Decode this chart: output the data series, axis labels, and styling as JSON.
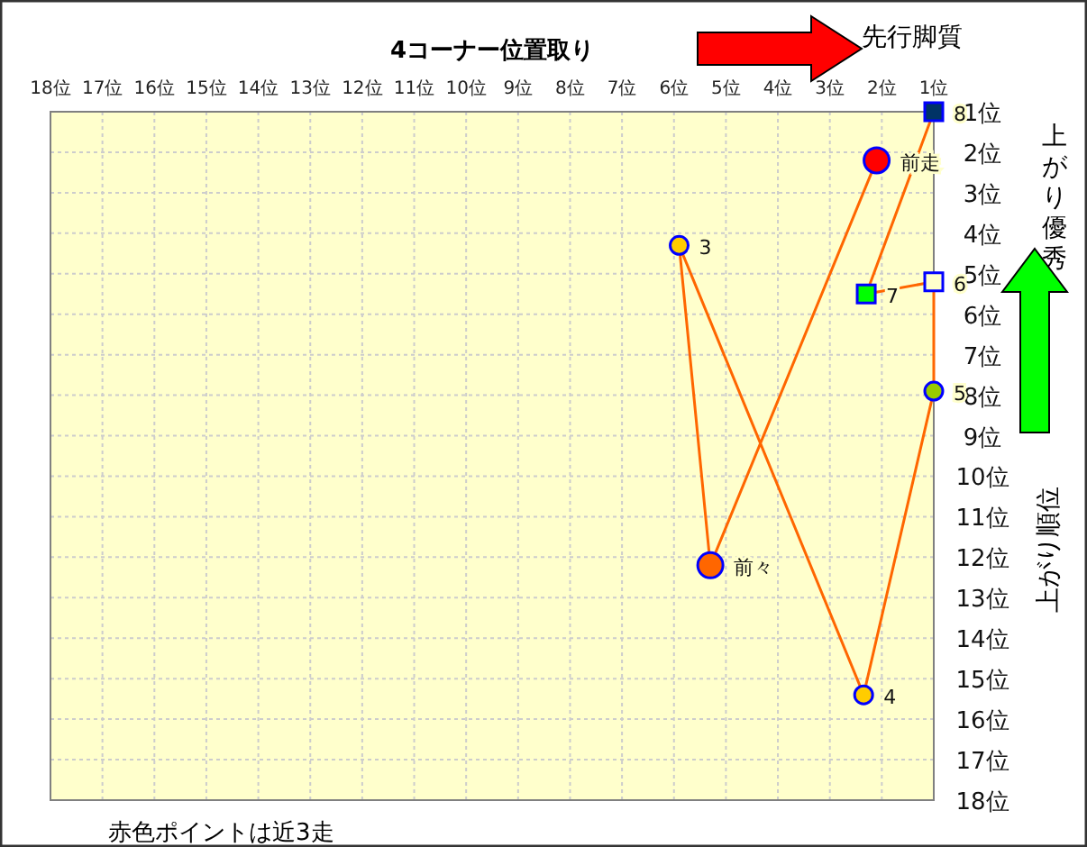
{
  "chart_data": {
    "type": "scatter",
    "title": "4コーナー位置取り",
    "y2label": "上がり順位",
    "annotations": [
      "先行脚質",
      "上がり優秀",
      "赤色ポイントは近3走"
    ],
    "xlim": [
      18,
      1
    ],
    "xticks": [
      {
        "value": 18,
        "label": "18位"
      },
      {
        "value": 17,
        "label": "17位"
      },
      {
        "value": 16,
        "label": "16位"
      },
      {
        "value": 15,
        "label": "15位"
      },
      {
        "value": 14,
        "label": "14位"
      },
      {
        "value": 13,
        "label": "13位"
      },
      {
        "value": 12,
        "label": "12位"
      },
      {
        "value": 11,
        "label": "11位"
      },
      {
        "value": 10,
        "label": "10位"
      },
      {
        "value": 9,
        "label": "9位"
      },
      {
        "value": 8,
        "label": "8位"
      },
      {
        "value": 7,
        "label": "7位"
      },
      {
        "value": 6,
        "label": "6位"
      },
      {
        "value": 5,
        "label": "5位"
      },
      {
        "value": 4,
        "label": "4位"
      },
      {
        "value": 3,
        "label": "3位"
      },
      {
        "value": 2,
        "label": "2位"
      },
      {
        "value": 1,
        "label": "1位"
      }
    ],
    "ylim": [
      18,
      1
    ],
    "yticks": [
      {
        "value": 1,
        "label": "1位"
      },
      {
        "value": 2,
        "label": "2位"
      },
      {
        "value": 3,
        "label": "3位"
      },
      {
        "value": 4,
        "label": "4位"
      },
      {
        "value": 5,
        "label": "5位"
      },
      {
        "value": 6,
        "label": "6位"
      },
      {
        "value": 7,
        "label": "7位"
      },
      {
        "value": 8,
        "label": "8位"
      },
      {
        "value": 9,
        "label": "9位"
      },
      {
        "value": 10,
        "label": "10位"
      },
      {
        "value": 11,
        "label": "11位"
      },
      {
        "value": 12,
        "label": "12位"
      },
      {
        "value": 13,
        "label": "13位"
      },
      {
        "value": 14,
        "label": "14位"
      },
      {
        "value": 15,
        "label": "15位"
      },
      {
        "value": 16,
        "label": "16位"
      },
      {
        "value": 17,
        "label": "17位"
      },
      {
        "value": 18,
        "label": "18位"
      }
    ],
    "grid": true,
    "series": [
      {
        "type": "line",
        "color": "#ff6600",
        "marker": "none",
        "x": [
          2.1,
          5.3,
          5.9,
          2.35,
          1,
          1,
          2.3,
          1
        ],
        "values": [
          2.2,
          12.2,
          4.3,
          15.4,
          7.9,
          5.2,
          5.5,
          1
        ]
      },
      {
        "name": "前走",
        "marker": "circle",
        "color": "#ff0000",
        "x": [
          2.1
        ],
        "values": [
          2.2
        ]
      },
      {
        "name": "前々",
        "type": "scatter",
        "marker": "circle",
        "color": "#ff6600",
        "x": [
          5.3
        ],
        "values": [
          12.2
        ]
      },
      {
        "name": "3",
        "type": "scatter",
        "marker": "circle",
        "color": "#ffcc00",
        "x": [
          5.9
        ],
        "values": [
          4.3
        ]
      },
      {
        "name": "4",
        "type": "scatter",
        "marker": "circle",
        "color": "#ffcc00",
        "x": [
          2.35
        ],
        "values": [
          15.4
        ]
      },
      {
        "name": "5",
        "type": "scatter",
        "marker": "circle",
        "color": "#99cc00",
        "x": [
          1
        ],
        "values": [
          7.9
        ]
      },
      {
        "name": "6",
        "type": "scatter",
        "marker": "square",
        "color": "#ffffcc",
        "x": [
          1
        ],
        "values": [
          5.2
        ]
      },
      {
        "name": "7",
        "type": "scatter",
        "marker": "square",
        "color": "#00ff00",
        "x": [
          2.3
        ],
        "values": [
          5.5
        ]
      },
      {
        "name": "8",
        "type": "scatter",
        "marker": "square",
        "color": "#003366",
        "x": [
          1
        ],
        "values": [
          1
        ]
      }
    ]
  }
}
